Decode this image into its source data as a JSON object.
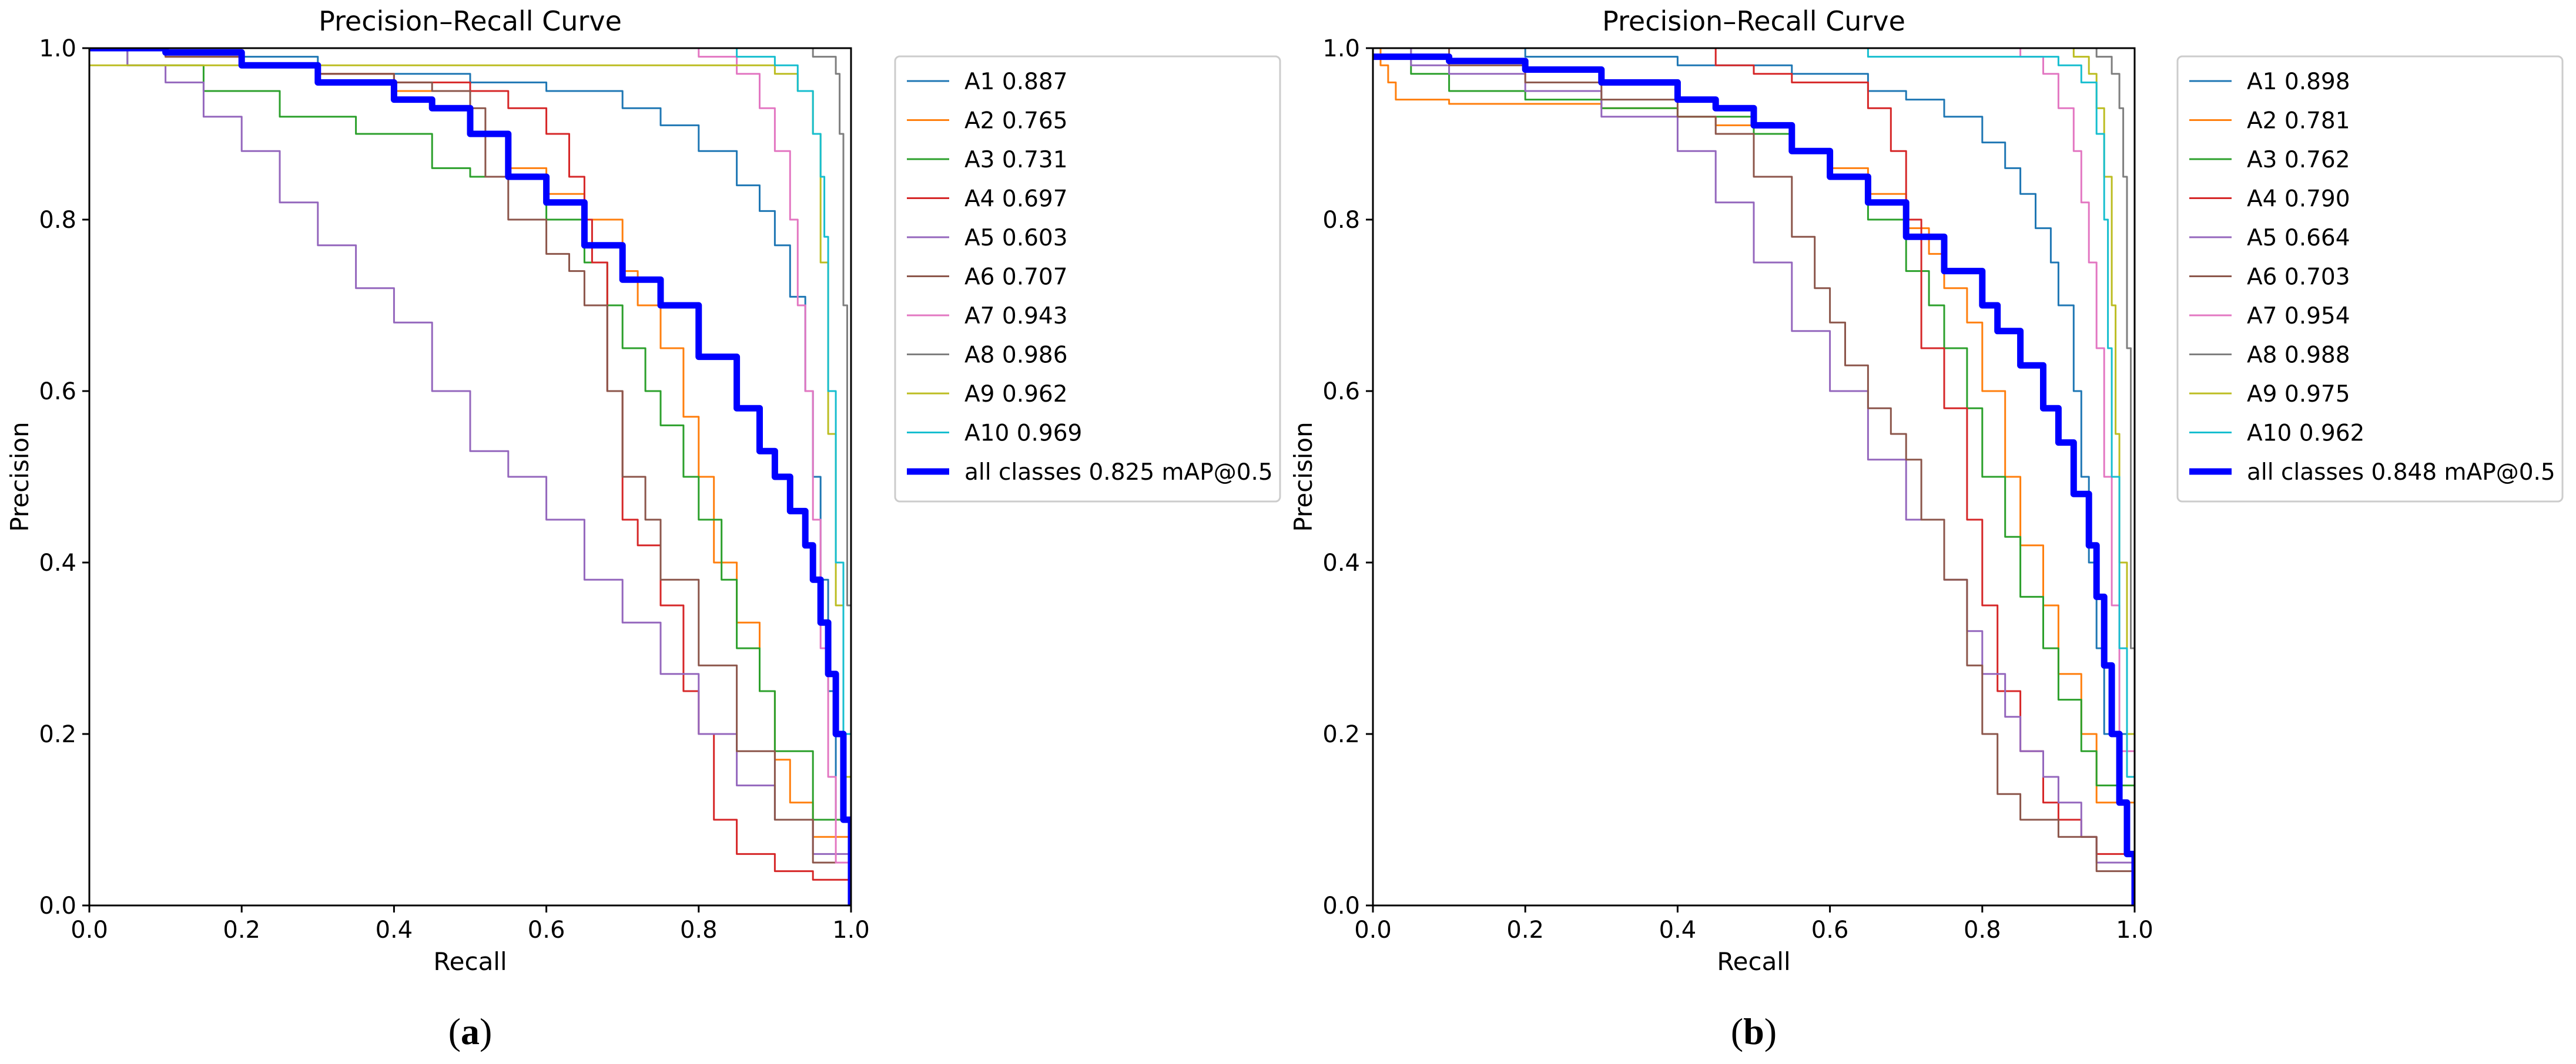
{
  "figure": {
    "panels": [
      {
        "id": "a",
        "panel_label": "a"
      },
      {
        "id": "b",
        "panel_label": "b"
      }
    ]
  },
  "chart_data": [
    {
      "type": "line",
      "panel_label": "a",
      "title": "Precision–Recall Curve",
      "xlabel": "Recall",
      "ylabel": "Precision",
      "xlim": [
        0,
        1
      ],
      "ylim": [
        0,
        1
      ],
      "xticks": [
        "0.0",
        "0.2",
        "0.4",
        "0.6",
        "0.8",
        "1.0"
      ],
      "yticks": [
        "0.0",
        "0.2",
        "0.4",
        "0.6",
        "0.8",
        "1.0"
      ],
      "legend_position": "outside-right",
      "series": [
        {
          "name": "A1",
          "legend": "A1 0.887",
          "ap": 0.887,
          "color": "#1f77b4",
          "x": [
            0,
            0.1,
            0.3,
            0.5,
            0.6,
            0.7,
            0.75,
            0.8,
            0.85,
            0.88,
            0.9,
            0.92,
            0.94,
            0.95,
            0.96,
            0.97,
            0.98,
            1.0
          ],
          "y": [
            1.0,
            0.99,
            0.97,
            0.96,
            0.95,
            0.93,
            0.91,
            0.88,
            0.84,
            0.81,
            0.77,
            0.71,
            0.6,
            0.5,
            0.38,
            0.25,
            0.1,
            0.0
          ]
        },
        {
          "name": "A2",
          "legend": "A2 0.765",
          "ap": 0.765,
          "color": "#ff7f0e",
          "x": [
            0,
            0.1,
            0.2,
            0.3,
            0.4,
            0.5,
            0.55,
            0.6,
            0.65,
            0.7,
            0.72,
            0.75,
            0.78,
            0.8,
            0.82,
            0.85,
            0.88,
            0.9,
            0.92,
            0.95,
            1.0
          ],
          "y": [
            1.0,
            0.99,
            0.98,
            0.97,
            0.95,
            0.9,
            0.86,
            0.83,
            0.8,
            0.74,
            0.7,
            0.65,
            0.57,
            0.5,
            0.4,
            0.33,
            0.25,
            0.17,
            0.12,
            0.08,
            0.0
          ]
        },
        {
          "name": "A3",
          "legend": "A3 0.731",
          "ap": 0.731,
          "color": "#2ca02c",
          "x": [
            0,
            0.05,
            0.15,
            0.25,
            0.35,
            0.45,
            0.5,
            0.55,
            0.6,
            0.65,
            0.68,
            0.7,
            0.73,
            0.75,
            0.78,
            0.8,
            0.83,
            0.85,
            0.88,
            0.9,
            0.95,
            1.0
          ],
          "y": [
            1.0,
            0.98,
            0.95,
            0.92,
            0.9,
            0.86,
            0.85,
            0.85,
            0.8,
            0.75,
            0.7,
            0.65,
            0.6,
            0.56,
            0.5,
            0.45,
            0.38,
            0.3,
            0.25,
            0.18,
            0.1,
            0.0
          ]
        },
        {
          "name": "A4",
          "legend": "A4 0.697",
          "ap": 0.697,
          "color": "#d62728",
          "x": [
            0,
            0.1,
            0.2,
            0.3,
            0.4,
            0.5,
            0.55,
            0.6,
            0.63,
            0.65,
            0.66,
            0.68,
            0.7,
            0.72,
            0.75,
            0.78,
            0.8,
            0.82,
            0.85,
            0.9,
            0.95,
            1.0
          ],
          "y": [
            1.0,
            0.99,
            0.98,
            0.97,
            0.96,
            0.95,
            0.93,
            0.9,
            0.85,
            0.8,
            0.75,
            0.6,
            0.45,
            0.42,
            0.35,
            0.25,
            0.2,
            0.1,
            0.06,
            0.04,
            0.03,
            0.0
          ]
        },
        {
          "name": "A5",
          "legend": "A5 0.603",
          "ap": 0.603,
          "color": "#9467bd",
          "x": [
            0,
            0.05,
            0.1,
            0.15,
            0.2,
            0.25,
            0.3,
            0.35,
            0.4,
            0.45,
            0.5,
            0.55,
            0.6,
            0.65,
            0.7,
            0.75,
            0.8,
            0.85,
            0.9,
            0.95,
            1.0
          ],
          "y": [
            1.0,
            0.98,
            0.96,
            0.92,
            0.88,
            0.82,
            0.77,
            0.72,
            0.68,
            0.6,
            0.53,
            0.5,
            0.45,
            0.38,
            0.33,
            0.27,
            0.2,
            0.14,
            0.1,
            0.06,
            0.0
          ]
        },
        {
          "name": "A6",
          "legend": "A6 0.707",
          "ap": 0.707,
          "color": "#8c564b",
          "x": [
            0,
            0.1,
            0.2,
            0.3,
            0.4,
            0.45,
            0.5,
            0.52,
            0.55,
            0.6,
            0.63,
            0.65,
            0.68,
            0.7,
            0.73,
            0.75,
            0.8,
            0.85,
            0.9,
            0.95,
            1.0
          ],
          "y": [
            1.0,
            0.99,
            0.98,
            0.97,
            0.96,
            0.95,
            0.93,
            0.85,
            0.8,
            0.76,
            0.74,
            0.7,
            0.6,
            0.5,
            0.45,
            0.38,
            0.28,
            0.18,
            0.1,
            0.05,
            0.0
          ]
        },
        {
          "name": "A7",
          "legend": "A7 0.943",
          "ap": 0.943,
          "color": "#e377c2",
          "x": [
            0,
            0.3,
            0.6,
            0.8,
            0.85,
            0.88,
            0.9,
            0.92,
            0.93,
            0.94,
            0.95,
            0.96,
            0.97,
            0.98,
            1.0
          ],
          "y": [
            1.0,
            1.0,
            1.0,
            0.99,
            0.97,
            0.93,
            0.88,
            0.8,
            0.7,
            0.6,
            0.45,
            0.3,
            0.15,
            0.05,
            0.0
          ]
        },
        {
          "name": "A8",
          "legend": "A8 0.986",
          "ap": 0.986,
          "color": "#7f7f7f",
          "x": [
            0,
            0.5,
            0.9,
            0.95,
            0.97,
            0.98,
            0.985,
            0.99,
            0.995,
            1.0
          ],
          "y": [
            1.0,
            1.0,
            1.0,
            0.99,
            0.99,
            0.97,
            0.9,
            0.7,
            0.35,
            0.0
          ]
        },
        {
          "name": "A9",
          "legend": "A9 0.962",
          "ap": 0.962,
          "color": "#bcbd22",
          "x": [
            0,
            0.3,
            0.6,
            0.85,
            0.9,
            0.93,
            0.95,
            0.96,
            0.97,
            0.98,
            0.99,
            1.0
          ],
          "y": [
            0.98,
            0.98,
            0.98,
            0.98,
            0.97,
            0.95,
            0.9,
            0.75,
            0.55,
            0.35,
            0.15,
            0.0
          ]
        },
        {
          "name": "A10",
          "legend": "A10 0.969",
          "ap": 0.969,
          "color": "#17becf",
          "x": [
            0,
            0.3,
            0.6,
            0.85,
            0.9,
            0.93,
            0.95,
            0.96,
            0.965,
            0.97,
            0.98,
            0.99,
            1.0
          ],
          "y": [
            1.0,
            1.0,
            1.0,
            0.99,
            0.98,
            0.95,
            0.9,
            0.85,
            0.78,
            0.6,
            0.4,
            0.2,
            0.0
          ]
        },
        {
          "name": "all classes",
          "legend": "all classes 0.825 mAP@0.5",
          "ap": 0.825,
          "color": "#0000ff",
          "bold": true,
          "x": [
            0,
            0.1,
            0.2,
            0.3,
            0.4,
            0.45,
            0.5,
            0.55,
            0.6,
            0.65,
            0.7,
            0.75,
            0.8,
            0.85,
            0.88,
            0.9,
            0.92,
            0.94,
            0.95,
            0.96,
            0.97,
            0.98,
            0.99,
            1.0
          ],
          "y": [
            1.0,
            0.995,
            0.98,
            0.96,
            0.94,
            0.93,
            0.9,
            0.85,
            0.82,
            0.77,
            0.73,
            0.7,
            0.64,
            0.58,
            0.53,
            0.5,
            0.46,
            0.42,
            0.38,
            0.33,
            0.27,
            0.2,
            0.1,
            0.0
          ]
        }
      ]
    },
    {
      "type": "line",
      "panel_label": "b",
      "title": "Precision–Recall Curve",
      "xlabel": "Recall",
      "ylabel": "Precision",
      "xlim": [
        0,
        1
      ],
      "ylim": [
        0,
        1
      ],
      "xticks": [
        "0.0",
        "0.2",
        "0.4",
        "0.6",
        "0.8",
        "1.0"
      ],
      "yticks": [
        "0.0",
        "0.2",
        "0.4",
        "0.6",
        "0.8",
        "1.0"
      ],
      "legend_position": "outside-right",
      "series": [
        {
          "name": "A1",
          "legend": "A1 0.898",
          "ap": 0.898,
          "color": "#1f77b4",
          "x": [
            0,
            0.2,
            0.4,
            0.55,
            0.65,
            0.7,
            0.75,
            0.8,
            0.83,
            0.85,
            0.87,
            0.89,
            0.9,
            0.92,
            0.93,
            0.94,
            0.95,
            0.96,
            1.0
          ],
          "y": [
            1.0,
            0.99,
            0.98,
            0.97,
            0.95,
            0.94,
            0.92,
            0.89,
            0.86,
            0.83,
            0.79,
            0.75,
            0.7,
            0.6,
            0.5,
            0.4,
            0.3,
            0.2,
            0.0
          ]
        },
        {
          "name": "A2",
          "legend": "A2 0.781",
          "ap": 0.781,
          "color": "#ff7f0e",
          "x": [
            0,
            0.01,
            0.02,
            0.03,
            0.1,
            0.2,
            0.3,
            0.4,
            0.45,
            0.5,
            0.55,
            0.6,
            0.65,
            0.7,
            0.73,
            0.75,
            0.78,
            0.8,
            0.83,
            0.85,
            0.88,
            0.9,
            0.93,
            0.95,
            1.0
          ],
          "y": [
            1.0,
            0.98,
            0.96,
            0.94,
            0.935,
            0.935,
            0.93,
            0.92,
            0.91,
            0.9,
            0.88,
            0.86,
            0.83,
            0.79,
            0.76,
            0.72,
            0.68,
            0.6,
            0.5,
            0.42,
            0.35,
            0.27,
            0.2,
            0.12,
            0.0
          ]
        },
        {
          "name": "A3",
          "legend": "A3 0.762",
          "ap": 0.762,
          "color": "#2ca02c",
          "x": [
            0,
            0.05,
            0.1,
            0.2,
            0.3,
            0.4,
            0.5,
            0.55,
            0.6,
            0.65,
            0.7,
            0.73,
            0.75,
            0.78,
            0.8,
            0.83,
            0.85,
            0.88,
            0.9,
            0.93,
            0.95,
            1.0
          ],
          "y": [
            1.0,
            0.97,
            0.95,
            0.94,
            0.93,
            0.92,
            0.9,
            0.88,
            0.85,
            0.8,
            0.74,
            0.7,
            0.65,
            0.58,
            0.5,
            0.43,
            0.36,
            0.3,
            0.24,
            0.18,
            0.14,
            0.0
          ]
        },
        {
          "name": "A4",
          "legend": "A4 0.790",
          "ap": 0.79,
          "color": "#d62728",
          "x": [
            0,
            0.3,
            0.44,
            0.45,
            0.5,
            0.55,
            0.6,
            0.65,
            0.68,
            0.7,
            0.72,
            0.75,
            0.78,
            0.8,
            0.82,
            0.85,
            0.88,
            0.9,
            0.93,
            0.95,
            1.0
          ],
          "y": [
            1.0,
            1.0,
            1.0,
            0.98,
            0.97,
            0.96,
            0.96,
            0.93,
            0.88,
            0.8,
            0.65,
            0.58,
            0.45,
            0.35,
            0.25,
            0.18,
            0.12,
            0.1,
            0.08,
            0.06,
            0.0
          ]
        },
        {
          "name": "A5",
          "legend": "A5 0.664",
          "ap": 0.664,
          "color": "#9467bd",
          "x": [
            0,
            0.05,
            0.1,
            0.2,
            0.3,
            0.4,
            0.45,
            0.5,
            0.55,
            0.6,
            0.65,
            0.7,
            0.75,
            0.78,
            0.8,
            0.83,
            0.85,
            0.88,
            0.9,
            0.93,
            0.95,
            1.0
          ],
          "y": [
            1.0,
            0.98,
            0.97,
            0.95,
            0.92,
            0.88,
            0.82,
            0.75,
            0.67,
            0.6,
            0.52,
            0.45,
            0.38,
            0.32,
            0.27,
            0.22,
            0.18,
            0.15,
            0.12,
            0.08,
            0.05,
            0.0
          ]
        },
        {
          "name": "A6",
          "legend": "A6 0.703",
          "ap": 0.703,
          "color": "#8c564b",
          "x": [
            0,
            0.1,
            0.2,
            0.3,
            0.4,
            0.45,
            0.5,
            0.55,
            0.58,
            0.6,
            0.62,
            0.65,
            0.68,
            0.7,
            0.72,
            0.75,
            0.78,
            0.8,
            0.82,
            0.85,
            0.9,
            0.95,
            1.0
          ],
          "y": [
            1.0,
            0.98,
            0.96,
            0.94,
            0.92,
            0.9,
            0.85,
            0.78,
            0.72,
            0.68,
            0.63,
            0.58,
            0.55,
            0.52,
            0.45,
            0.38,
            0.28,
            0.2,
            0.13,
            0.1,
            0.08,
            0.04,
            0.0
          ]
        },
        {
          "name": "A7",
          "legend": "A7 0.954",
          "ap": 0.954,
          "color": "#e377c2",
          "x": [
            0,
            0.4,
            0.7,
            0.85,
            0.88,
            0.9,
            0.92,
            0.93,
            0.94,
            0.95,
            0.96,
            0.97,
            0.98,
            1.0
          ],
          "y": [
            1.0,
            1.0,
            1.0,
            0.99,
            0.97,
            0.93,
            0.88,
            0.82,
            0.75,
            0.65,
            0.5,
            0.35,
            0.18,
            0.0
          ]
        },
        {
          "name": "A8",
          "legend": "A8 0.988",
          "ap": 0.988,
          "color": "#7f7f7f",
          "x": [
            0,
            0.5,
            0.9,
            0.95,
            0.97,
            0.98,
            0.985,
            0.99,
            0.995,
            1.0
          ],
          "y": [
            1.0,
            1.0,
            1.0,
            0.99,
            0.97,
            0.93,
            0.85,
            0.65,
            0.3,
            0.0
          ]
        },
        {
          "name": "A9",
          "legend": "A9 0.975",
          "ap": 0.975,
          "color": "#bcbd22",
          "x": [
            0,
            0.4,
            0.8,
            0.92,
            0.94,
            0.95,
            0.96,
            0.97,
            0.975,
            0.98,
            0.99,
            1.0
          ],
          "y": [
            1.0,
            1.0,
            1.0,
            0.99,
            0.97,
            0.93,
            0.85,
            0.7,
            0.55,
            0.4,
            0.2,
            0.0
          ]
        },
        {
          "name": "A10",
          "legend": "A10 0.962",
          "ap": 0.962,
          "color": "#17becf",
          "x": [
            0,
            0.3,
            0.6,
            0.65,
            0.85,
            0.9,
            0.93,
            0.95,
            0.96,
            0.965,
            0.97,
            0.98,
            0.99,
            1.0
          ],
          "y": [
            1.0,
            1.0,
            1.0,
            0.99,
            0.99,
            0.98,
            0.96,
            0.9,
            0.8,
            0.65,
            0.5,
            0.3,
            0.15,
            0.0
          ]
        },
        {
          "name": "all classes",
          "legend": "all classes 0.848 mAP@0.5",
          "ap": 0.848,
          "color": "#0000ff",
          "bold": true,
          "x": [
            0,
            0.1,
            0.2,
            0.3,
            0.4,
            0.45,
            0.5,
            0.55,
            0.6,
            0.65,
            0.7,
            0.75,
            0.8,
            0.82,
            0.85,
            0.88,
            0.9,
            0.92,
            0.94,
            0.95,
            0.96,
            0.97,
            0.98,
            0.99,
            1.0
          ],
          "y": [
            0.99,
            0.985,
            0.975,
            0.96,
            0.94,
            0.93,
            0.91,
            0.88,
            0.85,
            0.82,
            0.78,
            0.74,
            0.7,
            0.67,
            0.63,
            0.58,
            0.54,
            0.48,
            0.42,
            0.36,
            0.28,
            0.2,
            0.12,
            0.06,
            0.0
          ]
        }
      ]
    }
  ]
}
